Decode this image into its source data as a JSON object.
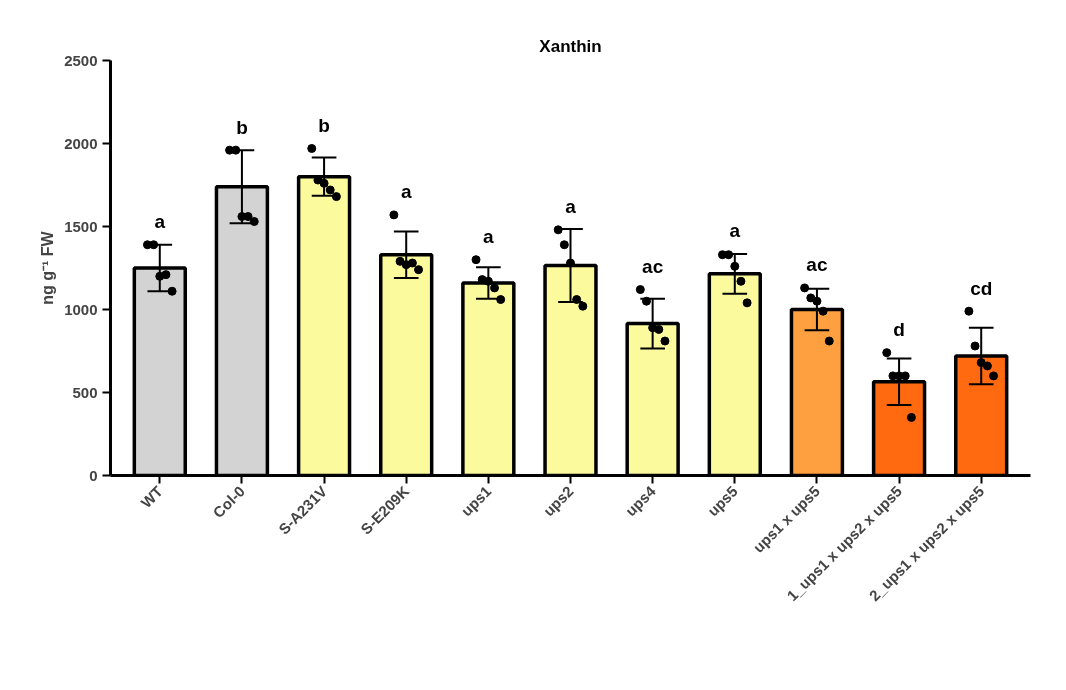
{
  "chart_data": {
    "type": "bar",
    "title": "Xanthin",
    "ylabel": "ng g⁻¹ FW",
    "categories": [
      "WT",
      "Col-0",
      "S-A231V",
      "S-E209K",
      "ups1",
      "ups2",
      "ups4",
      "ups5",
      "ups1 x ups5",
      "1_ups1 x ups2 x ups5",
      "2_ups1 x ups2 x ups5"
    ],
    "values": [
      1250,
      1740,
      1800,
      1330,
      1160,
      1265,
      915,
      1215,
      1000,
      565,
      720
    ],
    "errors": [
      140,
      220,
      115,
      140,
      95,
      220,
      150,
      120,
      125,
      140,
      170
    ],
    "colors": [
      "#d3d3d3",
      "#d3d3d3",
      "#fbfb9e",
      "#fbfb9e",
      "#fbfb9e",
      "#fbfb9e",
      "#fbfb9e",
      "#fbfb9e",
      "#ffa040",
      "#ff6a10",
      "#ff6a10"
    ],
    "series": [
      {
        "type": "scatter",
        "color": "#000000",
        "x": [
          "WT",
          "WT",
          "WT",
          "WT",
          "WT",
          "Col-0",
          "Col-0",
          "Col-0",
          "Col-0",
          "Col-0",
          "S-A231V",
          "S-A231V",
          "S-A231V",
          "S-A231V",
          "S-A231V",
          "S-E209K",
          "S-E209K",
          "S-E209K",
          "S-E209K",
          "S-E209K",
          "ups1",
          "ups1",
          "ups1",
          "ups1",
          "ups1",
          "ups2",
          "ups2",
          "ups2",
          "ups2",
          "ups2",
          "ups4",
          "ups4",
          "ups4",
          "ups4",
          "ups4",
          "ups5",
          "ups5",
          "ups5",
          "ups5",
          "ups5",
          "ups1 x ups5",
          "ups1 x ups5",
          "ups1 x ups5",
          "ups1 x ups5",
          "ups1 x ups5",
          "1_ups1 x ups2 x ups5",
          "1_ups1 x ups2 x ups5",
          "1_ups1 x ups2 x ups5",
          "1_ups1 x ups2 x ups5",
          "1_ups1 x ups2 x ups5",
          "2_ups1 x ups2 x ups5",
          "2_ups1 x ups2 x ups5",
          "2_ups1 x ups2 x ups5",
          "2_ups1 x ups2 x ups5",
          "2_ups1 x ups2 x ups5"
        ],
        "values": [
          1390,
          1390,
          1200,
          1210,
          1110,
          1960,
          1960,
          1560,
          1560,
          1530,
          1970,
          1780,
          1760,
          1720,
          1680,
          1570,
          1290,
          1270,
          1280,
          1240,
          1300,
          1180,
          1170,
          1130,
          1060,
          1480,
          1390,
          1280,
          1060,
          1020,
          1120,
          1050,
          890,
          880,
          810,
          1330,
          1330,
          1260,
          1170,
          1040,
          1130,
          1070,
          1050,
          990,
          810,
          740,
          600,
          600,
          600,
          350,
          990,
          780,
          680,
          660,
          600
        ]
      }
    ],
    "annotations": [
      "a",
      "b",
      "b",
      "a",
      "a",
      "a",
      "ac",
      "a",
      "ac",
      "d",
      "cd"
    ],
    "ylim": [
      0,
      2500
    ],
    "yticks": [
      0,
      500,
      1000,
      1500,
      2000,
      2500
    ],
    "grid": false,
    "marker": "circle"
  }
}
